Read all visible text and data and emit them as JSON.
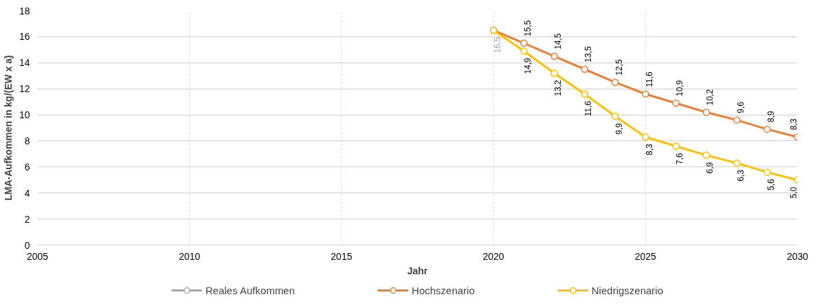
{
  "chart_data": {
    "type": "line",
    "xlabel": "Jahr",
    "ylabel": "LMA-Aufkommen in kg/(EW x a)",
    "xlim": [
      2005,
      2030
    ],
    "xticks": [
      2005,
      2010,
      2015,
      2020,
      2025,
      2030
    ],
    "ylim": [
      0,
      18
    ],
    "yticks": [
      0,
      2,
      4,
      6,
      8,
      10,
      12,
      14,
      16,
      18
    ],
    "grid": true,
    "legend": "bottom",
    "marker": "circle",
    "line_style": "solid",
    "series": [
      {
        "name": "Reales Aufkommen",
        "color": "#a6a6a6",
        "x": [
          2020
        ],
        "values": [
          16.5
        ],
        "value_labels": [
          "16,5"
        ]
      },
      {
        "name": "Hochszenario",
        "color": "#ed7d31",
        "x": [
          2020,
          2021,
          2022,
          2023,
          2024,
          2025,
          2026,
          2027,
          2028,
          2029,
          2030
        ],
        "values": [
          16.5,
          15.5,
          14.5,
          13.5,
          12.5,
          11.6,
          10.9,
          10.2,
          9.6,
          8.9,
          8.3
        ],
        "value_labels": [
          null,
          "15,5",
          "14,5",
          "13,5",
          "12,5",
          "11,6",
          "10,9",
          "10,2",
          "9,6",
          "8,9",
          "8,3"
        ]
      },
      {
        "name": "Niedrigszenario",
        "color": "#ffc000",
        "x": [
          2020,
          2021,
          2022,
          2023,
          2024,
          2025,
          2026,
          2027,
          2028,
          2029,
          2030
        ],
        "values": [
          16.5,
          14.9,
          13.2,
          11.6,
          9.9,
          8.3,
          7.6,
          6.9,
          6.3,
          5.6,
          5.0
        ],
        "value_labels": [
          null,
          "14,9",
          "13,2",
          "11,6",
          "9,9",
          "8,3",
          "7,6",
          "6,9",
          "6,3",
          "5,6",
          "5,0"
        ]
      }
    ]
  }
}
